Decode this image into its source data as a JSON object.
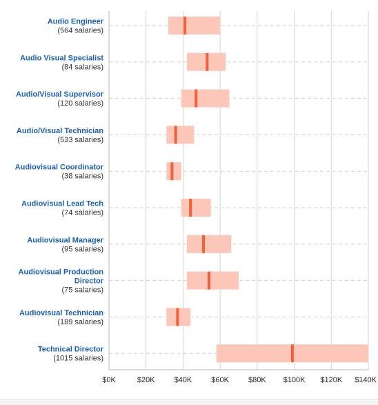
{
  "chart_data": {
    "type": "range-bar",
    "orientation": "horizontal",
    "title": "",
    "xlabel": "",
    "ylabel": "",
    "xlim": [
      0,
      140000
    ],
    "x_ticks": [
      0,
      20000,
      40000,
      60000,
      80000,
      100000,
      120000,
      140000
    ],
    "x_tick_labels": [
      "$0K",
      "$20K",
      "$40K",
      "$60K",
      "$80K",
      "$100K",
      "$120K",
      "$140K"
    ],
    "grid": true,
    "colors": {
      "range": "#fcc7b9",
      "median": "#f2603a",
      "title": "#1a5fb4",
      "grid": "#d6d6d6"
    },
    "jobs": [
      {
        "title": [
          "Audio Engineer"
        ],
        "count": "(564 salaries)",
        "low": 32000,
        "median": 41000,
        "high": 60000
      },
      {
        "title": [
          "Audio Visual Specialist"
        ],
        "count": "(84 salaries)",
        "low": 42000,
        "median": 53000,
        "high": 63000
      },
      {
        "title": [
          "Audio/Visual Supervisor"
        ],
        "count": "(120 salaries)",
        "low": 39000,
        "median": 47000,
        "high": 65000
      },
      {
        "title": [
          "Audio/Visual Technician"
        ],
        "count": "(533 salaries)",
        "low": 31000,
        "median": 36000,
        "high": 46000
      },
      {
        "title": [
          "Audiovisual Coordinator"
        ],
        "count": "(38 salaries)",
        "low": 31000,
        "median": 34000,
        "high": 39000
      },
      {
        "title": [
          "Audiovisual Lead Tech"
        ],
        "count": "(74 salaries)",
        "low": 39000,
        "median": 44000,
        "high": 55000
      },
      {
        "title": [
          "Audiovisual Manager"
        ],
        "count": "(95 salaries)",
        "low": 42000,
        "median": 51000,
        "high": 66000
      },
      {
        "title": [
          "Audiovisual Production",
          "Director"
        ],
        "count": "(75 salaries)",
        "low": 42000,
        "median": 54000,
        "high": 70000
      },
      {
        "title": [
          "Audiovisual Technician"
        ],
        "count": "(189 salaries)",
        "low": 31000,
        "median": 37000,
        "high": 44000
      },
      {
        "title": [
          "Technical Director"
        ],
        "count": "(1015 salaries)",
        "low": 58000,
        "median": 99000,
        "high": 140000
      }
    ]
  }
}
